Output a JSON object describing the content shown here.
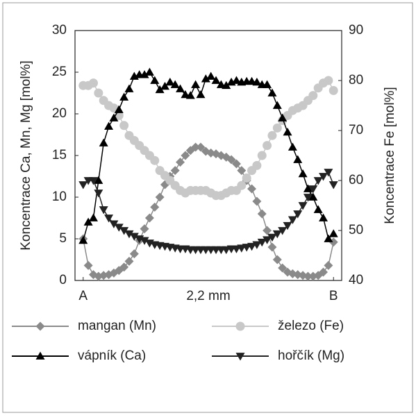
{
  "chart_data": {
    "type": "line",
    "x_label": "2,2 mm",
    "y_label": "Koncentrace Ca, Mn, Mg [mol%]",
    "y2_label": "Koncentrace Fe [mol%]",
    "x": [
      0,
      1,
      2,
      3,
      4,
      5,
      6,
      7,
      8,
      9,
      10,
      11,
      12,
      13,
      14,
      15,
      16,
      17,
      18,
      19,
      20,
      21,
      22,
      23,
      24,
      25,
      26,
      27,
      28,
      29,
      30,
      31,
      32,
      33,
      34,
      35,
      36,
      37,
      38,
      39,
      40,
      41,
      42,
      43,
      44,
      45,
      46,
      47,
      48,
      49
    ],
    "xlim": [
      -1.6,
      50.6
    ],
    "xticks": [
      {
        "value": 0,
        "label": "A"
      },
      {
        "value": 49,
        "label": "B"
      }
    ],
    "ylim": [
      0,
      30
    ],
    "yticks": [
      0,
      5,
      10,
      15,
      20,
      25,
      30
    ],
    "y2lim": [
      40,
      90
    ],
    "y2ticks": [
      40,
      50,
      60,
      70,
      80,
      90
    ],
    "series": [
      {
        "name": "mangan (Mn)",
        "color": "#8a8a8a",
        "marker": "diamond",
        "values": [
          5.0,
          1.8,
          0.7,
          0.5,
          0.6,
          0.7,
          0.9,
          1.2,
          1.6,
          2.3,
          3.2,
          4.8,
          6.2,
          7.5,
          8.8,
          10.0,
          11.5,
          12.5,
          13.2,
          14.2,
          15.0,
          15.6,
          16.0,
          16.0,
          15.5,
          15.3,
          15.2,
          15.0,
          14.8,
          14.5,
          14.0,
          13.2,
          12.0,
          11.0,
          9.5,
          8.0,
          6.0,
          4.0,
          2.5,
          1.5,
          1.0,
          0.8,
          0.7,
          0.6,
          0.5,
          0.5,
          0.6,
          1.0,
          1.8,
          4.6
        ]
      },
      {
        "name": "železo (Fe)",
        "color": "#c8c8c8",
        "marker": "circle",
        "axis": "y2",
        "values": [
          79,
          79,
          79.5,
          77.5,
          76,
          75,
          74.5,
          73,
          71,
          69,
          68,
          67,
          66,
          65,
          64,
          62,
          61,
          60,
          59,
          58,
          57.5,
          58,
          58,
          58,
          58,
          57.5,
          57,
          57,
          57.5,
          58,
          58,
          59,
          60.5,
          62,
          63,
          65,
          67,
          69,
          70.5,
          72,
          73,
          74,
          74.5,
          75,
          76,
          77,
          78.5,
          79.5,
          80,
          78
        ]
      },
      {
        "name": "vápník (Ca)",
        "color": "#000000",
        "marker": "triangle-up",
        "values": [
          4.8,
          7.0,
          7.5,
          12.0,
          16.5,
          18.5,
          19.5,
          20.5,
          22,
          23,
          24.5,
          24.7,
          24.7,
          25,
          24,
          22.9,
          23.3,
          23.8,
          23.5,
          23.0,
          22.3,
          22.2,
          23.5,
          22.3,
          24.2,
          24.5,
          24,
          23.5,
          23.4,
          23.8,
          24,
          23.8,
          23.9,
          23.9,
          23.8,
          23.5,
          23.5,
          22.5,
          21,
          19.5,
          17.8,
          16,
          14.5,
          12.8,
          11.0,
          10.0,
          8.5,
          7.5,
          5.0,
          5.6
        ]
      },
      {
        "name": "hořčík (Mg)",
        "color": "#222222",
        "marker": "triangle-down",
        "values": [
          11.5,
          12.0,
          12.0,
          10.5,
          8.5,
          7.5,
          6.8,
          6.4,
          6.0,
          5.6,
          5.3,
          5.0,
          4.8,
          4.5,
          4.3,
          4.2,
          4.1,
          4.0,
          3.9,
          3.8,
          3.8,
          3.7,
          3.7,
          3.7,
          3.7,
          3.7,
          3.7,
          3.7,
          3.7,
          3.8,
          3.8,
          3.9,
          4.0,
          4.1,
          4.3,
          4.6,
          4.9,
          5.2,
          5.6,
          6.0,
          6.6,
          7.3,
          8.0,
          9.0,
          10.0,
          11.0,
          12.0,
          12.5,
          13.0,
          11.5
        ]
      }
    ]
  }
}
